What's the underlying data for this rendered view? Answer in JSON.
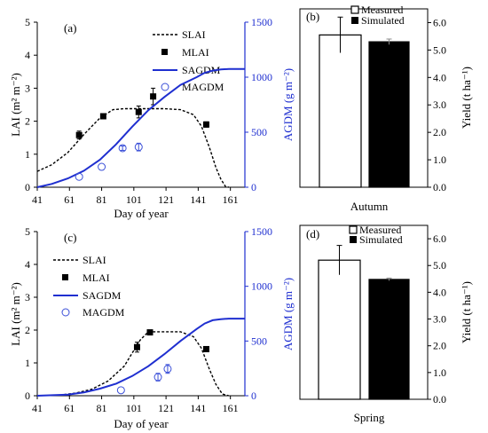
{
  "colors": {
    "simulated_agdm": "#1f2fd0",
    "measured_agdm": "#3a4fd8",
    "lai": "#000000",
    "bar_simulated": "#000000",
    "bar_measured": "#ffffff"
  },
  "panels": {
    "a": {
      "label": "(a)",
      "legend": [
        "SLAI",
        "MLAI",
        "SAGDM",
        "MAGDM"
      ],
      "xlabel": "Day of year",
      "ylabel_left": "LAI (m² m⁻²)",
      "ylabel_right": "AGDM  (g m⁻²)",
      "x_ticks": [
        "41",
        "61",
        "81",
        "101",
        "121",
        "141",
        "161"
      ],
      "y_left_ticks": [
        "0",
        "1",
        "2",
        "3",
        "4",
        "5"
      ],
      "y_right_ticks": [
        "0",
        "500",
        "1000",
        "1500"
      ]
    },
    "b": {
      "label": "(b)",
      "legend": [
        "Measured",
        "Simulated"
      ],
      "xlabel": "Autumn",
      "ylabel": "Yield (t ha⁻¹)",
      "y_ticks": [
        "0.0",
        "1.0",
        "2.0",
        "3.0",
        "4.0",
        "5.0",
        "6.0"
      ]
    },
    "c": {
      "label": "(c)",
      "legend": [
        "SLAI",
        "MLAI",
        "SAGDM",
        "MAGDM"
      ],
      "xlabel": "Day of year",
      "ylabel_left": "LAI (m² m⁻²)",
      "ylabel_right": "AGDM  (g m⁻²)",
      "x_ticks": [
        "41",
        "61",
        "81",
        "101",
        "121",
        "141",
        "161"
      ],
      "y_left_ticks": [
        "0",
        "1",
        "2",
        "3",
        "4",
        "5"
      ],
      "y_right_ticks": [
        "0",
        "500",
        "1000",
        "1500"
      ]
    },
    "d": {
      "label": "(d)",
      "legend": [
        "Measured",
        "Simulated"
      ],
      "xlabel": "Spring",
      "ylabel": "Yield (t ha⁻¹)",
      "y_ticks": [
        "0.0",
        "1.0",
        "2.0",
        "3.0",
        "4.0",
        "5.0",
        "6.0"
      ]
    }
  },
  "chart_data": [
    {
      "panel": "a",
      "type": "line",
      "xlabel": "Day of year",
      "ylabel": "LAI (m² m⁻²)",
      "y2label": "AGDM (g m⁻²)",
      "xlim": [
        41,
        170
      ],
      "ylim": [
        0,
        5
      ],
      "y2lim": [
        0,
        1500
      ],
      "series": [
        {
          "name": "SLAI",
          "axis": "left",
          "style": "dashed",
          "x": [
            41,
            50,
            60,
            70,
            80,
            88,
            95,
            110,
            120,
            130,
            138,
            143,
            148,
            152,
            155,
            158,
            160
          ],
          "y": [
            0.48,
            0.68,
            1.05,
            1.6,
            2.1,
            2.35,
            2.38,
            2.38,
            2.38,
            2.35,
            2.2,
            1.85,
            1.2,
            0.6,
            0.25,
            0.02,
            0
          ]
        },
        {
          "name": "MLAI",
          "axis": "left",
          "style": "square",
          "x": [
            67,
            82,
            104,
            113,
            146
          ],
          "y": [
            1.58,
            2.15,
            2.28,
            2.75,
            1.9
          ],
          "err": [
            0.12,
            0.05,
            0.18,
            0.25,
            0.08
          ]
        },
        {
          "name": "SAGDM",
          "axis": "right",
          "style": "solid",
          "x": [
            41,
            50,
            60,
            70,
            80,
            90,
            100,
            110,
            120,
            130,
            140,
            145,
            150,
            155,
            160,
            170
          ],
          "y": [
            0,
            30,
            80,
            150,
            250,
            390,
            550,
            700,
            820,
            930,
            1000,
            1040,
            1060,
            1070,
            1075,
            1075
          ]
        },
        {
          "name": "MAGDM",
          "axis": "right",
          "style": "circle",
          "x": [
            67,
            81,
            94,
            104
          ],
          "y": [
            95,
            185,
            355,
            365
          ],
          "err": [
            0,
            0,
            20,
            35
          ]
        }
      ]
    },
    {
      "panel": "b",
      "type": "bar",
      "categories": [
        "Measured",
        "Simulated"
      ],
      "values": [
        5.55,
        5.3
      ],
      "err": [
        0.65,
        0.1
      ],
      "xlabel": "Autumn",
      "ylabel": "Yield (t ha⁻¹)",
      "ylim": [
        0,
        6.5
      ]
    },
    {
      "panel": "c",
      "type": "line",
      "xlabel": "Day of year",
      "ylabel": "LAI (m² m⁻²)",
      "y2label": "AGDM (g m⁻²)",
      "xlim": [
        41,
        170
      ],
      "ylim": [
        0,
        5
      ],
      "y2lim": [
        0,
        1500
      ],
      "series": [
        {
          "name": "SLAI",
          "axis": "left",
          "style": "dashed",
          "x": [
            41,
            55,
            65,
            75,
            85,
            95,
            100,
            105,
            110,
            120,
            130,
            138,
            143,
            148,
            152,
            156,
            160
          ],
          "y": [
            0,
            0.02,
            0.08,
            0.2,
            0.45,
            0.9,
            1.3,
            1.7,
            1.95,
            1.95,
            1.95,
            1.8,
            1.45,
            0.8,
            0.35,
            0.05,
            0
          ]
        },
        {
          "name": "MLAI",
          "axis": "left",
          "style": "square",
          "x": [
            103,
            111,
            146
          ],
          "y": [
            1.48,
            1.93,
            1.42
          ],
          "err": [
            0.15,
            0.05,
            0.05
          ]
        },
        {
          "name": "SAGDM",
          "axis": "right",
          "style": "solid",
          "x": [
            41,
            60,
            70,
            80,
            90,
            100,
            110,
            120,
            130,
            140,
            145,
            150,
            155,
            160,
            170
          ],
          "y": [
            0,
            10,
            30,
            65,
            110,
            180,
            270,
            380,
            500,
            610,
            660,
            690,
            700,
            705,
            705
          ]
        },
        {
          "name": "MAGDM",
          "axis": "right",
          "style": "circle",
          "x": [
            93,
            116,
            122
          ],
          "y": [
            50,
            170,
            245
          ],
          "err": [
            0,
            35,
            40
          ]
        }
      ]
    },
    {
      "panel": "d",
      "type": "bar",
      "categories": [
        "Measured",
        "Simulated"
      ],
      "values": [
        5.2,
        4.48
      ],
      "err": [
        0.55,
        0.05
      ],
      "xlabel": "Spring",
      "ylabel": "Yield (t ha⁻¹)",
      "ylim": [
        0,
        6.5
      ]
    }
  ]
}
